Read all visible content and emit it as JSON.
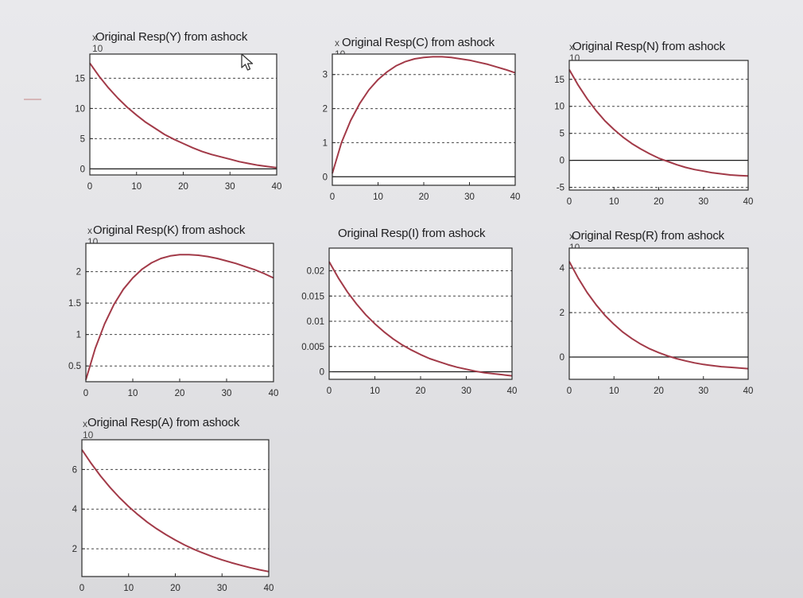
{
  "colors": {
    "curve": "#a23a48",
    "zero_line": "#1b1b1b",
    "grid": "#454545",
    "plot_bg": "#ffffff",
    "frame": "#2b2b2b"
  },
  "chart_data": [
    {
      "type": "line",
      "title": "Original Resp(Y) from ashock",
      "scale_label": "x 10",
      "x": [
        0,
        40
      ],
      "xticks": [
        0,
        10,
        20,
        30,
        40
      ],
      "ylim": [
        -1,
        19
      ],
      "yticks": [
        0,
        5,
        10,
        15
      ],
      "yticklabels": [
        "0",
        "5",
        "10",
        "15"
      ],
      "grid": true,
      "zero_line": true,
      "series": [
        {
          "x": [
            0,
            2,
            4,
            6,
            8,
            10,
            12,
            14,
            16,
            18,
            20,
            22,
            24,
            26,
            28,
            30,
            32,
            34,
            36,
            38,
            40
          ],
          "values": [
            17.5,
            15.3,
            13.4,
            11.7,
            10.2,
            8.9,
            7.7,
            6.7,
            5.7,
            4.9,
            4.2,
            3.5,
            2.9,
            2.4,
            2.0,
            1.6,
            1.2,
            0.9,
            0.6,
            0.4,
            0.2
          ]
        }
      ]
    },
    {
      "type": "line",
      "title": "Original Resp(C) from ashock",
      "scale_label": "x 10",
      "x": [
        0,
        40
      ],
      "xticks": [
        0,
        10,
        20,
        30,
        40
      ],
      "ylim": [
        -0.25,
        3.6
      ],
      "yticks": [
        0,
        1,
        2,
        3
      ],
      "yticklabels": [
        "0",
        "1",
        "2",
        "3"
      ],
      "grid": true,
      "zero_line": true,
      "series": [
        {
          "x": [
            0,
            2,
            4,
            6,
            8,
            10,
            12,
            14,
            16,
            18,
            20,
            22,
            24,
            26,
            28,
            30,
            32,
            34,
            36,
            38,
            40
          ],
          "values": [
            0.1,
            1.0,
            1.65,
            2.15,
            2.55,
            2.85,
            3.08,
            3.26,
            3.38,
            3.46,
            3.5,
            3.52,
            3.52,
            3.5,
            3.46,
            3.42,
            3.36,
            3.3,
            3.22,
            3.14,
            3.05
          ]
        }
      ]
    },
    {
      "type": "line",
      "title": "Original Resp(N) from ashock",
      "scale_label": "x 10",
      "x": [
        0,
        40
      ],
      "xticks": [
        0,
        10,
        20,
        30,
        40
      ],
      "ylim": [
        -5.5,
        18.5
      ],
      "yticks": [
        -5,
        0,
        5,
        10,
        15
      ],
      "yticklabels": [
        "-5",
        "0",
        "5",
        "10",
        "15"
      ],
      "grid": true,
      "zero_line": true,
      "series": [
        {
          "x": [
            0,
            2,
            4,
            6,
            8,
            10,
            12,
            14,
            16,
            18,
            20,
            22,
            24,
            26,
            28,
            30,
            32,
            34,
            36,
            38,
            40
          ],
          "values": [
            16.8,
            13.9,
            11.4,
            9.2,
            7.3,
            5.7,
            4.3,
            3.1,
            2.1,
            1.2,
            0.4,
            -0.2,
            -0.8,
            -1.3,
            -1.7,
            -2.0,
            -2.3,
            -2.5,
            -2.7,
            -2.8,
            -2.9
          ]
        }
      ]
    },
    {
      "type": "line",
      "title": "Original Resp(K) from ashock",
      "scale_label": "x 10",
      "x": [
        0,
        40
      ],
      "xticks": [
        0,
        10,
        20,
        30,
        40
      ],
      "ylim": [
        0.25,
        2.45
      ],
      "yticks": [
        0.5,
        1,
        1.5,
        2
      ],
      "yticklabels": [
        "0.5",
        "1",
        "1.5",
        "2"
      ],
      "grid": true,
      "zero_line": false,
      "series": [
        {
          "x": [
            0,
            2,
            4,
            6,
            8,
            10,
            12,
            14,
            16,
            18,
            20,
            22,
            24,
            26,
            28,
            30,
            32,
            34,
            36,
            38,
            40
          ],
          "values": [
            0.28,
            0.78,
            1.17,
            1.48,
            1.72,
            1.9,
            2.04,
            2.14,
            2.21,
            2.25,
            2.27,
            2.27,
            2.26,
            2.24,
            2.21,
            2.17,
            2.13,
            2.08,
            2.03,
            1.97,
            1.9
          ]
        }
      ]
    },
    {
      "type": "line",
      "title": "Original Resp(I) from ashock",
      "scale_label": "",
      "x": [
        0,
        40
      ],
      "xticks": [
        0,
        10,
        20,
        30,
        40
      ],
      "ylim": [
        -0.0015,
        0.0245
      ],
      "yticks": [
        0,
        0.005,
        0.01,
        0.015,
        0.02
      ],
      "yticklabels": [
        "0",
        "0.005",
        "0.01",
        "0.015",
        "0.02"
      ],
      "grid": true,
      "zero_line": true,
      "series": [
        {
          "x": [
            0,
            2,
            4,
            6,
            8,
            10,
            12,
            14,
            16,
            18,
            20,
            22,
            24,
            26,
            28,
            30,
            32,
            34,
            36,
            38,
            40
          ],
          "values": [
            0.0218,
            0.0186,
            0.0158,
            0.0134,
            0.0113,
            0.0095,
            0.0079,
            0.0065,
            0.0053,
            0.0043,
            0.0034,
            0.0026,
            0.002,
            0.0014,
            0.0009,
            0.0005,
            0.0001,
            -0.0002,
            -0.0004,
            -0.0006,
            -0.0008
          ]
        }
      ]
    },
    {
      "type": "line",
      "title": "Original Resp(R) from ashock",
      "scale_label": "x 10",
      "x": [
        0,
        40
      ],
      "xticks": [
        0,
        10,
        20,
        30,
        40
      ],
      "ylim": [
        -1.0,
        4.9
      ],
      "yticks": [
        0,
        2,
        4
      ],
      "yticklabels": [
        "0",
        "2",
        "4"
      ],
      "grid": true,
      "zero_line": true,
      "series": [
        {
          "x": [
            0,
            2,
            4,
            6,
            8,
            10,
            12,
            14,
            16,
            18,
            20,
            22,
            24,
            26,
            28,
            30,
            32,
            34,
            36,
            38,
            40
          ],
          "values": [
            4.3,
            3.55,
            2.9,
            2.35,
            1.87,
            1.47,
            1.12,
            0.83,
            0.58,
            0.37,
            0.2,
            0.05,
            -0.07,
            -0.17,
            -0.26,
            -0.33,
            -0.38,
            -0.43,
            -0.46,
            -0.49,
            -0.52
          ]
        }
      ]
    },
    {
      "type": "line",
      "title": "Original Resp(A) from ashock",
      "scale_label": "x 10",
      "x": [
        0,
        40
      ],
      "xticks": [
        0,
        10,
        20,
        30,
        40
      ],
      "ylim": [
        0.6,
        7.5
      ],
      "yticks": [
        2,
        4,
        6
      ],
      "yticklabels": [
        "2",
        "4",
        "6"
      ],
      "grid": true,
      "zero_line": false,
      "series": [
        {
          "x": [
            0,
            2,
            4,
            6,
            8,
            10,
            12,
            14,
            16,
            18,
            20,
            22,
            24,
            26,
            28,
            30,
            32,
            34,
            36,
            38,
            40
          ],
          "values": [
            7.0,
            6.3,
            5.67,
            5.1,
            4.59,
            4.13,
            3.72,
            3.34,
            3.01,
            2.71,
            2.44,
            2.19,
            1.97,
            1.78,
            1.6,
            1.44,
            1.3,
            1.17,
            1.05,
            0.94,
            0.85
          ]
        }
      ]
    }
  ]
}
